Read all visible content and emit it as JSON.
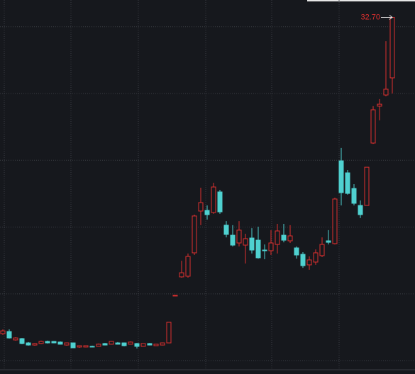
{
  "chart_data": {
    "type": "candlestick",
    "annotation": "32.70",
    "up_color": "#e0302f",
    "down_color": "#4fd1d0",
    "grid": true,
    "ylim": [
      6,
      34
    ],
    "yticks": [
      7,
      12,
      17,
      22,
      27,
      32
    ],
    "open": [
      9.02,
      9.18,
      8.55,
      8.65,
      8.33,
      8.17,
      8.28,
      8.44,
      8.44,
      8.39,
      8.17,
      8.33,
      8.02,
      8.02,
      8.07,
      8.07,
      8.28,
      8.23,
      8.33,
      8.33,
      8.23,
      8.28,
      8.07,
      8.28,
      8.12,
      8.17,
      8.33,
      11.89,
      13.27,
      13.32,
      15.07,
      18.2,
      18.25,
      18.09,
      19.63,
      17.14,
      16.39,
      15.81,
      15.65,
      16.18,
      16.02,
      15.28,
      15.23,
      15.7,
      16.39,
      15.97,
      15.44,
      14.96,
      14.17,
      14.38,
      14.86,
      15.97,
      15.76,
      21.96,
      21.06,
      19.89,
      18.62,
      18.62,
      23.29,
      26.05,
      26.89,
      28.17
    ],
    "high": [
      9.34,
      9.34,
      8.75,
      8.7,
      8.39,
      8.33,
      8.5,
      8.5,
      8.47,
      8.44,
      8.36,
      8.36,
      8.14,
      8.12,
      8.12,
      8.28,
      8.33,
      8.47,
      8.39,
      8.36,
      8.44,
      8.33,
      8.3,
      8.33,
      8.25,
      8.36,
      9.87,
      11.89,
      14.48,
      15.02,
      17.93,
      19.95,
      18.62,
      20.32,
      19.79,
      17.45,
      17.14,
      17.45,
      16.5,
      16.92,
      17.03,
      15.7,
      16.77,
      17.24,
      17.24,
      17.14,
      15.55,
      15.12,
      14.8,
      15.33,
      16.23,
      16.77,
      19.2,
      22.92,
      21.27,
      20.21,
      18.99,
      21.48,
      26.05,
      26.58,
      30.92,
      32.7
    ],
    "low": [
      8.92,
      8.65,
      8.5,
      8.23,
      8.12,
      8.12,
      8.23,
      8.28,
      8.3,
      8.2,
      8.12,
      7.96,
      7.96,
      7.99,
      7.99,
      8.04,
      8.14,
      8.2,
      8.2,
      8.07,
      8.2,
      7.91,
      8.04,
      8.14,
      8.1,
      8.14,
      8.3,
      11.89,
      13.21,
      13.21,
      14.91,
      17.14,
      17.56,
      17.99,
      17.99,
      16.23,
      15.55,
      15.55,
      14.27,
      15.02,
      14.64,
      14.59,
      14.91,
      15.02,
      15.86,
      15.81,
      14.64,
      13.95,
      13.8,
      14.17,
      14.75,
      15.7,
      15.7,
      18.62,
      19.42,
      18.62,
      17.67,
      18.62,
      23.23,
      24.99,
      26.79,
      27.0
    ],
    "close": [
      9.23,
      8.7,
      8.7,
      8.28,
      8.17,
      8.28,
      8.44,
      8.33,
      8.33,
      8.23,
      8.33,
      7.96,
      8.12,
      8.12,
      8.02,
      8.23,
      8.17,
      8.44,
      8.23,
      8.12,
      8.39,
      8.07,
      8.28,
      8.17,
      8.23,
      8.33,
      9.87,
      11.89,
      13.58,
      14.8,
      17.83,
      18.83,
      17.93,
      20.0,
      18.14,
      16.45,
      15.65,
      16.77,
      16.13,
      15.28,
      14.7,
      15.26,
      15.81,
      16.71,
      16.02,
      16.34,
      14.91,
      14.11,
      14.54,
      15.07,
      15.7,
      15.86,
      19.1,
      19.58,
      19.52,
      18.78,
      17.93,
      21.48,
      25.78,
      26.2,
      27.32,
      32.7
    ]
  }
}
